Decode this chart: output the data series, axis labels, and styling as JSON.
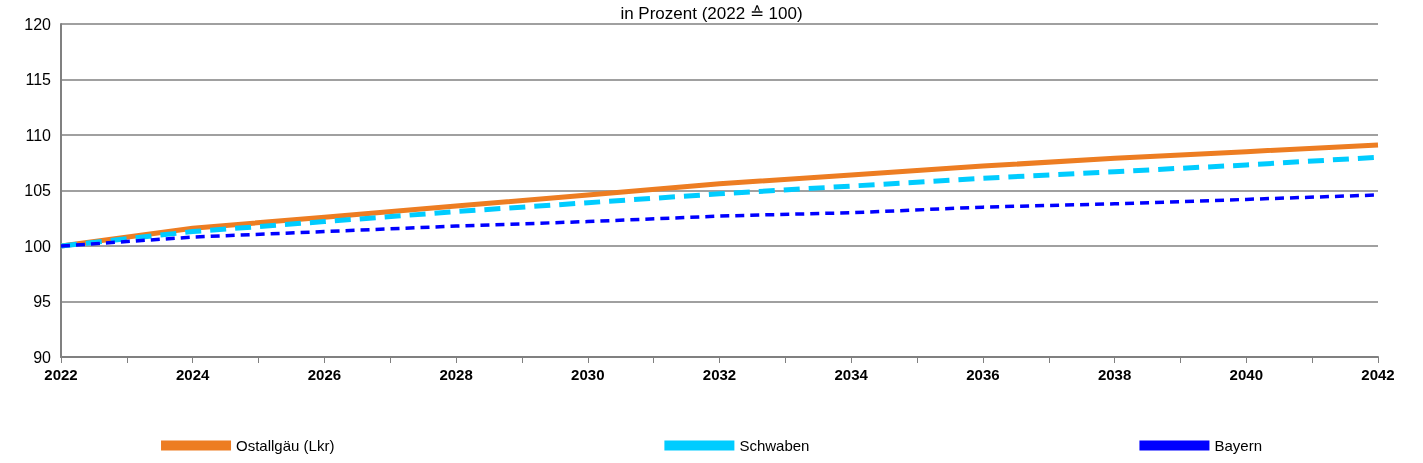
{
  "chart_data": {
    "type": "line",
    "title": "in Prozent (2022 ≙ 100)",
    "x": [
      2022,
      2024,
      2026,
      2028,
      2030,
      2032,
      2034,
      2036,
      2038,
      2040,
      2042
    ],
    "series": [
      {
        "name": "Ostallgäu (Lkr)",
        "color": "#ed7d22",
        "line_style": "solid",
        "values": [
          100,
          101.6,
          102.6,
          103.6,
          104.6,
          105.6,
          106.4,
          107.2,
          107.9,
          108.5,
          109.1
        ]
      },
      {
        "name": "Schwaben",
        "color": "#00ccff",
        "line_style": "dashed",
        "values": [
          100,
          101.3,
          102.2,
          103.1,
          103.9,
          104.7,
          105.4,
          106.1,
          106.7,
          107.3,
          108.0
        ]
      },
      {
        "name": "Bayern",
        "color": "#0000ff",
        "line_style": "dashed",
        "values": [
          100,
          100.8,
          101.3,
          101.8,
          102.2,
          102.7,
          103.0,
          103.5,
          103.8,
          104.2,
          104.6
        ]
      }
    ],
    "xlim": [
      2022,
      2042
    ],
    "xticks": [
      2022,
      {
        "value": 2023,
        "label": null
      },
      2024,
      {
        "value": 2025,
        "label": null
      },
      2026,
      {
        "value": 2027,
        "label": null
      },
      2028,
      {
        "value": 2029,
        "label": null
      },
      2030,
      {
        "value": 2031,
        "label": null
      },
      2032,
      {
        "value": 2033,
        "label": null
      },
      2034,
      {
        "value": 2035,
        "label": null
      },
      2036,
      {
        "value": 2037,
        "label": null
      },
      2038,
      {
        "value": 2039,
        "label": null
      },
      2040,
      {
        "value": 2041,
        "label": null
      },
      2042
    ],
    "ylim": [
      90,
      120
    ],
    "yticks": [
      90,
      95,
      100,
      105,
      110,
      115,
      120
    ],
    "grid": "y",
    "legend": "bottom",
    "marker": "none"
  }
}
